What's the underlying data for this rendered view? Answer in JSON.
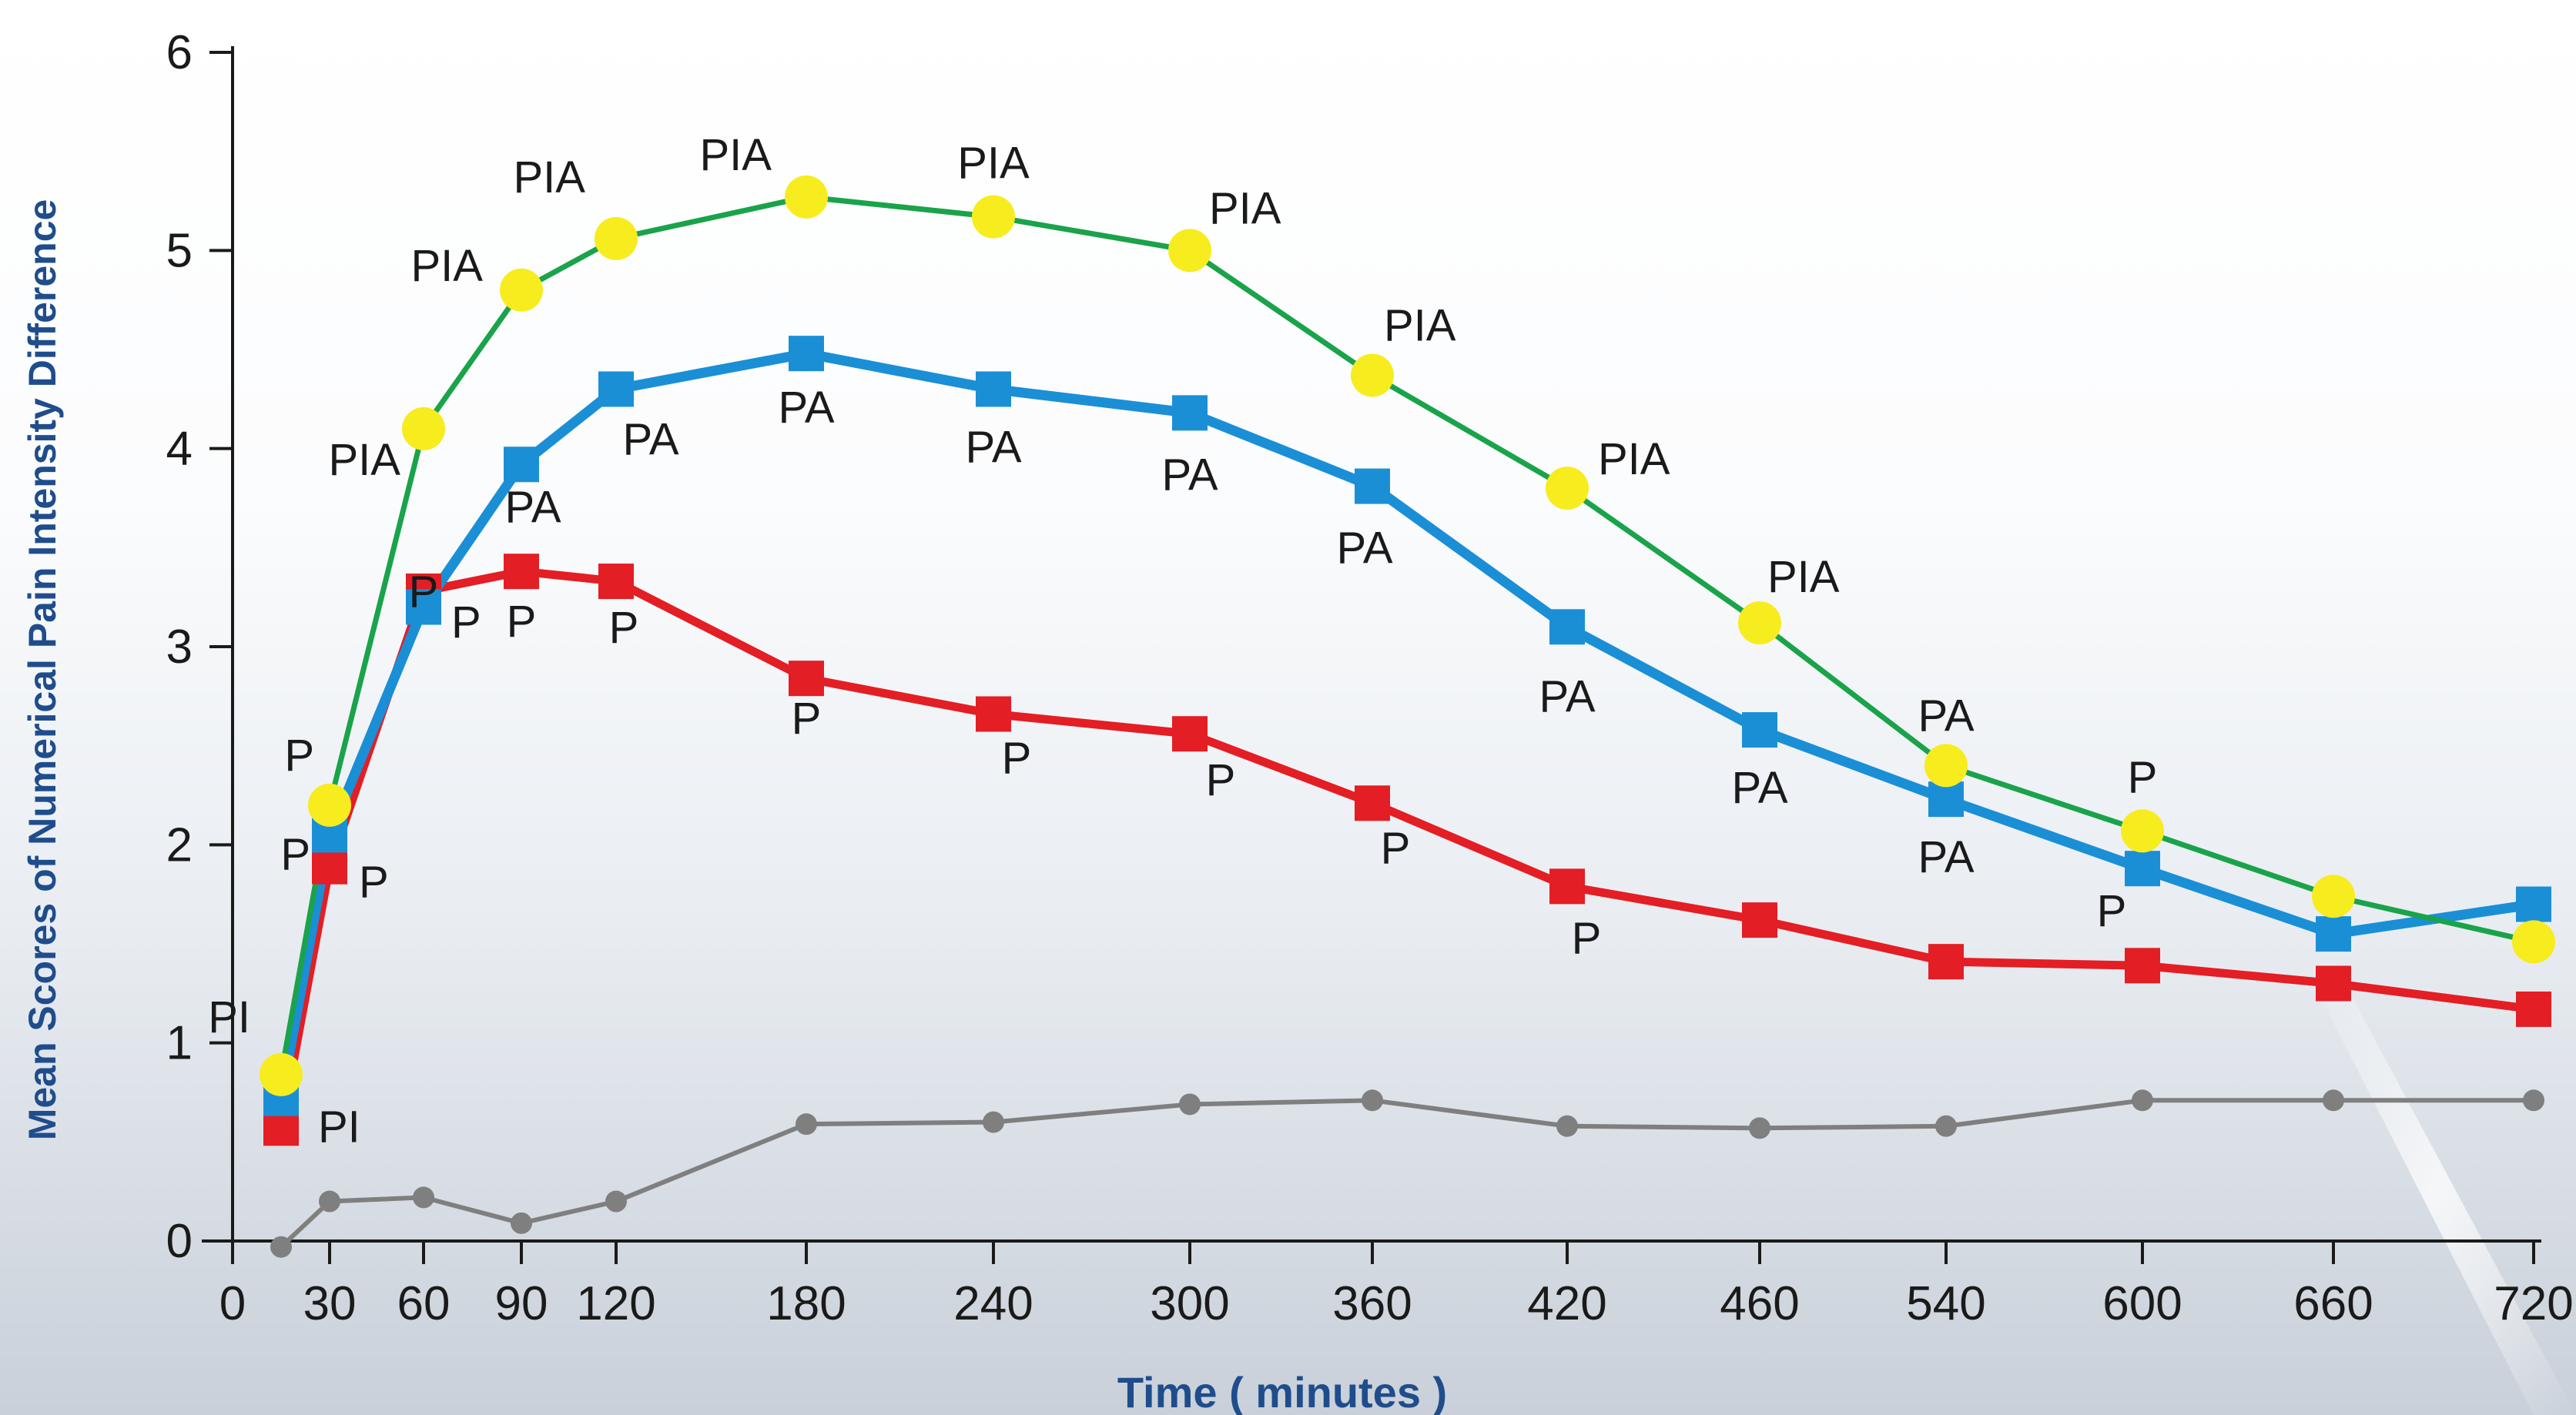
{
  "chart_data": {
    "type": "line",
    "title": "",
    "xlabel": "Time ( minutes )",
    "ylabel": "Mean Scores of Numerical Pain Intensity Difference",
    "ylim": [
      0,
      6
    ],
    "y_ticks": [
      "0",
      "1",
      "2",
      "3",
      "4",
      "5",
      "6"
    ],
    "x_ticks": [
      "0",
      "30",
      "60",
      "90",
      "120",
      "180",
      "240",
      "300",
      "360",
      "420",
      "460",
      "540",
      "600",
      "660",
      "720"
    ],
    "grid": false,
    "legend": "none",
    "series": [
      {
        "color": "#1aa34a",
        "marker": "circle",
        "marker_color": "#f7ec1e",
        "x": [
          "15",
          "30",
          "60",
          "90",
          "120",
          "180",
          "240",
          "300",
          "360",
          "420",
          "460",
          "540",
          "600",
          "660",
          "720"
        ],
        "values": [
          0.84,
          2.2,
          4.1,
          4.8,
          5.06,
          5.27,
          5.17,
          5.0,
          4.37,
          3.8,
          3.12,
          2.4,
          2.07,
          1.74,
          1.51
        ],
        "point_labels": [
          "PI",
          "P",
          "PIA",
          "PIA",
          "PIA",
          "PIA",
          "PIA",
          "PIA",
          "PIA",
          "PIA",
          "PIA",
          "PA",
          "P",
          "",
          ""
        ]
      },
      {
        "color": "#1a8fd6",
        "marker": "square",
        "marker_color": "#1a8fd6",
        "x": [
          "15",
          "30",
          "60",
          "90",
          "120",
          "180",
          "240",
          "300",
          "360",
          "420",
          "460",
          "540",
          "600",
          "660",
          "720"
        ],
        "values": [
          0.72,
          2.05,
          3.2,
          3.92,
          4.3,
          4.48,
          4.3,
          4.18,
          3.81,
          3.1,
          2.58,
          2.23,
          1.88,
          1.55,
          1.7
        ],
        "point_labels": [
          "",
          "P",
          "P",
          "PA",
          "PA",
          "PA",
          "PA",
          "PA",
          "PA",
          "PA",
          "PA",
          "PA",
          "P",
          "",
          ""
        ]
      },
      {
        "color": "#e31e24",
        "marker": "square",
        "marker_color": "#e31e24",
        "x": [
          "15",
          "30",
          "60",
          "90",
          "120",
          "180",
          "240",
          "300",
          "360",
          "420",
          "460",
          "540",
          "600",
          "660",
          "720"
        ],
        "values": [
          0.57,
          1.89,
          3.28,
          3.38,
          3.33,
          2.84,
          2.66,
          2.56,
          2.21,
          1.79,
          1.62,
          1.41,
          1.39,
          1.3,
          1.17
        ],
        "point_labels": [
          "PI",
          "P",
          "P",
          "P",
          "P",
          "P",
          "P",
          "P",
          "P",
          "P",
          "",
          "",
          "",
          "",
          ""
        ]
      },
      {
        "color": "#7f7f7f",
        "marker": "circle",
        "marker_color": "#7f7f7f",
        "x": [
          "15",
          "30",
          "60",
          "90",
          "120",
          "180",
          "240",
          "300",
          "360",
          "420",
          "460",
          "540",
          "600",
          "660",
          "720"
        ],
        "values": [
          -0.03,
          0.2,
          0.22,
          0.09,
          0.2,
          0.59,
          0.6,
          0.69,
          0.71,
          0.58,
          0.57,
          0.58,
          0.71,
          0.71,
          0.71
        ],
        "point_labels": [
          "",
          "",
          "",
          "",
          "",
          "",
          "",
          "",
          "",
          "",
          "",
          "",
          "",
          "",
          ""
        ]
      }
    ]
  }
}
